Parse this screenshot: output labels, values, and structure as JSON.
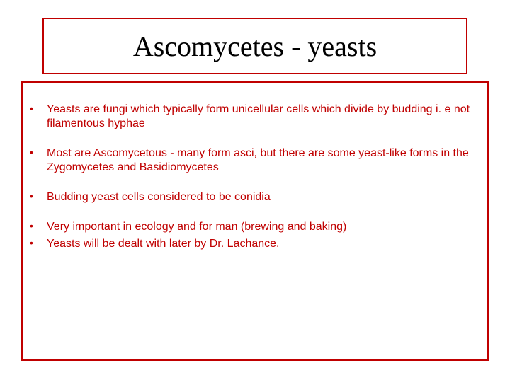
{
  "colors": {
    "border": "#c00000",
    "text": "#c00000",
    "title": "#000000",
    "background": "#ffffff"
  },
  "typography": {
    "title_font": "Times New Roman",
    "title_fontsize": 40,
    "body_font": "Tahoma",
    "body_fontsize": 16
  },
  "title": "Ascomycetes - yeasts",
  "bullets": [
    "Yeasts are fungi which typically form unicellular cells which divide by budding i. e not filamentous hyphae",
    "Most are Ascomycetous - many form asci, but there are some yeast-like forms  in the Zygomycetes and Basidiomycetes",
    "Budding yeast cells considered to be conidia",
    "Very important in ecology and for man (brewing and baking)",
    "Yeasts will be dealt with later by Dr. Lachance."
  ],
  "bullet_spacing_tight_indices": [
    3
  ]
}
